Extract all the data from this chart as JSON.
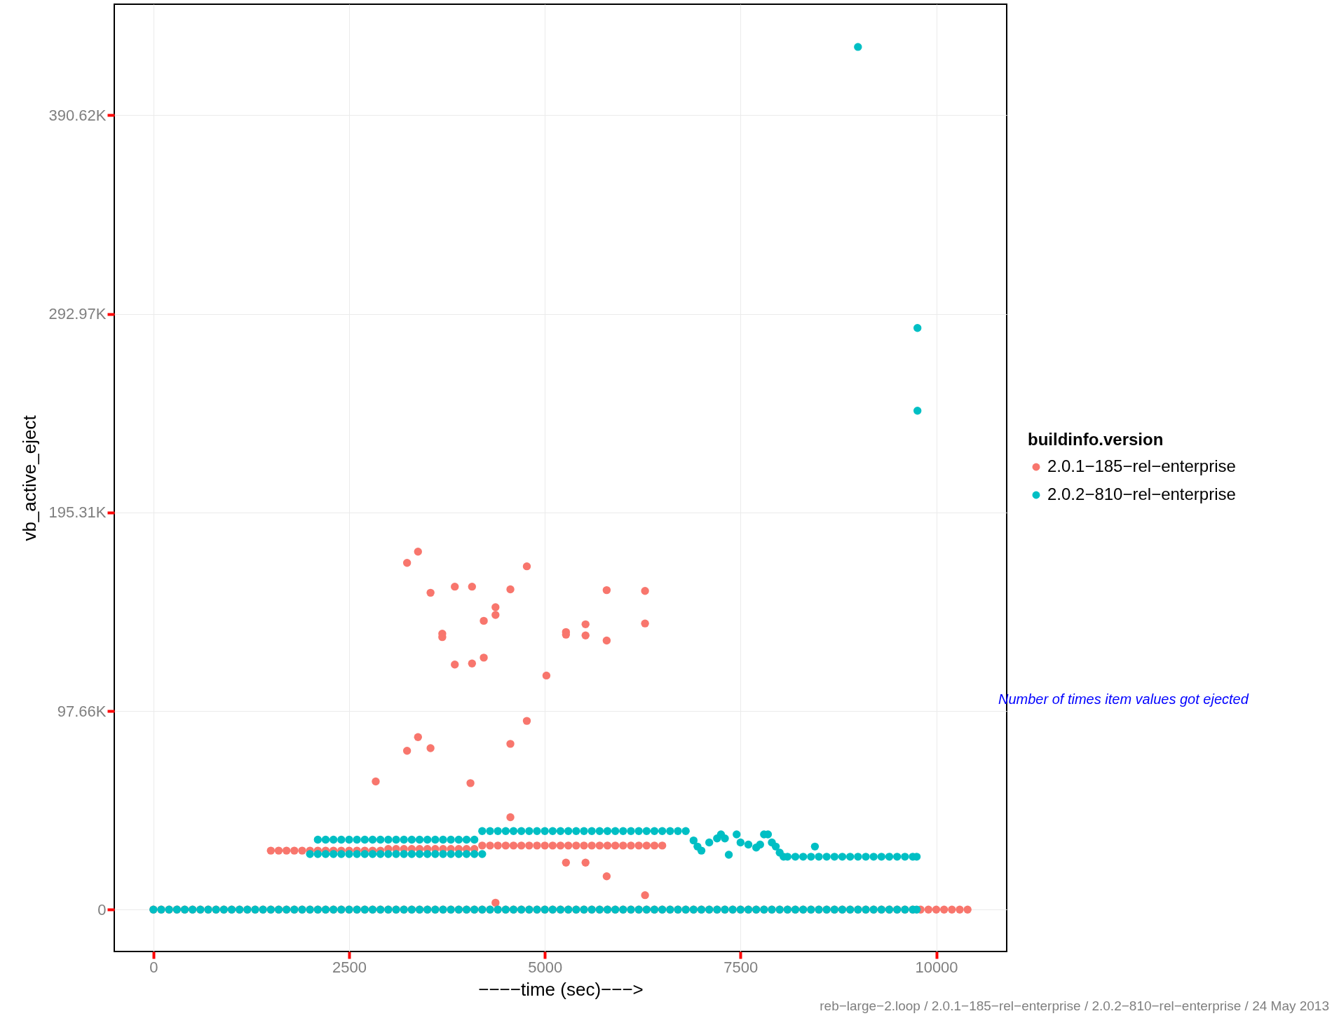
{
  "chart_data": {
    "type": "scatter",
    "xlabel": "−−−−time (sec)−−−>",
    "ylabel": "vb_active_eject",
    "legend_title": "buildinfo.version",
    "legend": "right",
    "grid": true,
    "marker": "circle",
    "xlim": [
      -500,
      10900
    ],
    "xticks": [
      0,
      2500,
      5000,
      7500,
      10000
    ],
    "ylim": [
      -20600,
      445200
    ],
    "yticks": [
      0,
      {
        "value": 97656.25,
        "label": "97.66K"
      },
      {
        "value": 195312.5,
        "label": "195.31K"
      },
      {
        "value": 292968.75,
        "label": "292.97K"
      },
      {
        "value": 390625,
        "label": "390.62K"
      }
    ],
    "annotations": [
      "Number of times item values got ejected",
      "reb−large−2.loop / 2.0.1−185−rel−enterprise / 2.0.2−810−rel−enterprise / 24 May 2013"
    ],
    "series": [
      {
        "name": "2.0.1−185−rel−enterprise",
        "color": "#f8766d",
        "x": [
          0,
          100,
          200,
          300,
          400,
          500,
          600,
          700,
          800,
          900,
          1000,
          1100,
          1200,
          1300,
          1400,
          1500,
          1600,
          1700,
          1800,
          1900,
          2000,
          2100,
          2200,
          2300,
          2400,
          2500,
          2600,
          2700,
          2800,
          2900,
          3000,
          3100,
          3200,
          3300,
          3400,
          3500,
          3600,
          3700,
          3800,
          3900,
          4000,
          4100,
          4200,
          4300,
          4400,
          4500,
          4600,
          4700,
          4800,
          4900,
          5000,
          5100,
          5200,
          5300,
          5400,
          5500,
          5600,
          5700,
          5800,
          5900,
          6000,
          6100,
          6200,
          6300,
          6400,
          6500,
          6600,
          6700,
          6800,
          6900,
          7000,
          7100,
          7200,
          7300,
          7400,
          7500,
          7600,
          7700,
          7800,
          7900,
          8000,
          8100,
          8200,
          8300,
          8400,
          8500,
          8600,
          8700,
          8800,
          8900,
          9000,
          9100,
          9200,
          9300,
          9400,
          9500,
          9600,
          9700,
          9800,
          9900,
          10000,
          10100,
          10200,
          10300,
          10400,
          1500,
          1600,
          1700,
          1800,
          1900,
          2000,
          2100,
          2200,
          2300,
          2400,
          2500,
          2600,
          2700,
          2800,
          2900,
          3000,
          3100,
          3200,
          3300,
          3400,
          3500,
          3600,
          3700,
          3800,
          3900,
          4000,
          4100,
          4200,
          4300,
          4400,
          4500,
          4600,
          4700,
          4800,
          4900,
          5000,
          5100,
          5200,
          5300,
          5400,
          5500,
          5600,
          5700,
          5800,
          5900,
          6000,
          6100,
          6200,
          6300,
          6400,
          6500,
          3240,
          3380,
          3540,
          3850,
          4070,
          4770,
          4560,
          5790,
          6280,
          4370,
          4370,
          4220,
          3690,
          3690,
          3850,
          4070,
          4220,
          5270,
          5270,
          5520,
          5520,
          5790,
          6280,
          5020,
          4770,
          4560,
          3380,
          3240,
          3540,
          2840,
          4050,
          4560,
          5270,
          5520,
          5790,
          6280,
          4370
        ],
        "values": [
          0,
          0,
          0,
          0,
          0,
          0,
          0,
          0,
          0,
          0,
          0,
          0,
          0,
          0,
          0,
          0,
          0,
          0,
          0,
          0,
          0,
          0,
          0,
          0,
          0,
          0,
          0,
          0,
          0,
          0,
          0,
          0,
          0,
          0,
          0,
          0,
          0,
          0,
          0,
          0,
          0,
          0,
          0,
          0,
          0,
          0,
          0,
          0,
          0,
          0,
          0,
          0,
          0,
          0,
          0,
          0,
          0,
          0,
          0,
          0,
          0,
          0,
          0,
          0,
          0,
          0,
          0,
          0,
          0,
          0,
          0,
          0,
          0,
          0,
          0,
          0,
          0,
          0,
          0,
          0,
          0,
          0,
          0,
          0,
          0,
          0,
          0,
          0,
          0,
          0,
          0,
          0,
          0,
          0,
          0,
          0,
          0,
          0,
          0,
          0,
          0,
          0,
          0,
          0,
          0,
          29000,
          29000,
          29000,
          29000,
          29000,
          29000,
          29000,
          29000,
          29000,
          29000,
          29000,
          29000,
          29000,
          29000,
          29000,
          29800,
          29800,
          29800,
          29800,
          29800,
          29800,
          29800,
          29800,
          29800,
          29800,
          29800,
          29800,
          31500,
          31500,
          31500,
          31500,
          31500,
          31500,
          31500,
          31500,
          31500,
          31500,
          31500,
          31500,
          31500,
          31500,
          31500,
          31500,
          31500,
          31500,
          31500,
          31500,
          31500,
          31500,
          31500,
          31500,
          170500,
          176000,
          155800,
          158800,
          158800,
          168800,
          157500,
          157100,
          156700,
          148700,
          144900,
          142000,
          135700,
          134000,
          120500,
          121000,
          123900,
          136500,
          135200,
          140300,
          134800,
          132300,
          140700,
          115100,
          92800,
          81500,
          84800,
          78100,
          79400,
          63000,
          62200,
          45400,
          23100,
          23100,
          16400,
          7100,
          3400
        ]
      },
      {
        "name": "2.0.2−810−rel−enterprise",
        "color": "#00bfc4",
        "x": [
          0,
          100,
          200,
          300,
          400,
          500,
          600,
          700,
          800,
          900,
          1000,
          1100,
          1200,
          1300,
          1400,
          1500,
          1600,
          1700,
          1800,
          1900,
          2000,
          2100,
          2200,
          2300,
          2400,
          2500,
          2600,
          2700,
          2800,
          2900,
          3000,
          3100,
          3200,
          3300,
          3400,
          3500,
          3600,
          3700,
          3800,
          3900,
          4000,
          4100,
          4200,
          4300,
          4400,
          4500,
          4600,
          4700,
          4800,
          4900,
          5000,
          5100,
          5200,
          5300,
          5400,
          5500,
          5600,
          5700,
          5800,
          5900,
          6000,
          6100,
          6200,
          6300,
          6400,
          6500,
          6600,
          6700,
          6800,
          6900,
          7000,
          7100,
          7200,
          7300,
          7400,
          7500,
          7600,
          7700,
          7800,
          7900,
          8000,
          8100,
          8200,
          8300,
          8400,
          8500,
          8600,
          8700,
          8800,
          8900,
          9000,
          9100,
          9200,
          9300,
          9400,
          9500,
          9600,
          9700,
          9750,
          2100,
          2200,
          2300,
          2400,
          2500,
          2600,
          2700,
          2800,
          2900,
          3000,
          3100,
          3200,
          3300,
          3400,
          3500,
          3600,
          3700,
          3800,
          3900,
          4000,
          4100,
          2000,
          2100,
          2200,
          2300,
          2400,
          2500,
          2600,
          2700,
          2800,
          2900,
          3000,
          3100,
          3200,
          3300,
          3400,
          3500,
          3600,
          3700,
          3800,
          3900,
          4000,
          4100,
          4200,
          4200,
          4300,
          4400,
          4500,
          4600,
          4700,
          4800,
          4900,
          5000,
          5100,
          5200,
          5300,
          5400,
          5500,
          5600,
          5700,
          5800,
          5900,
          6000,
          6100,
          6200,
          6300,
          6400,
          6500,
          6600,
          6700,
          6800,
          6900,
          6950,
          7000,
          7100,
          7200,
          7250,
          7300,
          7350,
          7450,
          7500,
          7600,
          7700,
          7750,
          7800,
          7850,
          7900,
          7950,
          8000,
          8050,
          8100,
          8200,
          8300,
          8400,
          8500,
          8600,
          8700,
          8800,
          8900,
          9000,
          9100,
          9200,
          9300,
          9400,
          9500,
          9600,
          9700,
          9750,
          8450,
          9000,
          9760,
          9760
        ],
        "values": [
          0,
          0,
          0,
          0,
          0,
          0,
          0,
          0,
          0,
          0,
          0,
          0,
          0,
          0,
          0,
          0,
          0,
          0,
          0,
          0,
          0,
          0,
          0,
          0,
          0,
          0,
          0,
          0,
          0,
          0,
          0,
          0,
          0,
          0,
          0,
          0,
          0,
          0,
          0,
          0,
          0,
          0,
          0,
          0,
          0,
          0,
          0,
          0,
          0,
          0,
          0,
          0,
          0,
          0,
          0,
          0,
          0,
          0,
          0,
          0,
          0,
          0,
          0,
          0,
          0,
          0,
          0,
          0,
          0,
          0,
          0,
          0,
          0,
          0,
          0,
          0,
          0,
          0,
          0,
          0,
          0,
          0,
          0,
          0,
          0,
          0,
          0,
          0,
          0,
          0,
          0,
          0,
          0,
          0,
          0,
          0,
          0,
          0,
          0,
          34400,
          34400,
          34400,
          34400,
          34400,
          34400,
          34400,
          34400,
          34400,
          34400,
          34400,
          34400,
          34400,
          34400,
          34400,
          34400,
          34400,
          34400,
          34400,
          34400,
          34400,
          27300,
          27300,
          27300,
          27300,
          27300,
          27300,
          27300,
          27300,
          27300,
          27300,
          27300,
          27300,
          27300,
          27300,
          27300,
          27300,
          27300,
          27300,
          27300,
          27300,
          27300,
          27300,
          27300,
          38600,
          38600,
          38600,
          38600,
          38600,
          38600,
          38600,
          38600,
          38600,
          38600,
          38600,
          38600,
          38600,
          38600,
          38600,
          38600,
          38600,
          38600,
          38600,
          38600,
          38600,
          38600,
          38600,
          38600,
          38600,
          38600,
          38600,
          34000,
          31000,
          29000,
          33000,
          35000,
          37000,
          35000,
          27000,
          37000,
          33000,
          32000,
          30500,
          32000,
          37000,
          37000,
          33000,
          31000,
          28000,
          26000,
          26000,
          26000,
          26000,
          26000,
          26000,
          26000,
          26000,
          26000,
          26000,
          26000,
          26000,
          26000,
          26000,
          26000,
          26000,
          26000,
          26000,
          26000,
          31000,
          424200,
          286000,
          245300
        ]
      }
    ]
  }
}
